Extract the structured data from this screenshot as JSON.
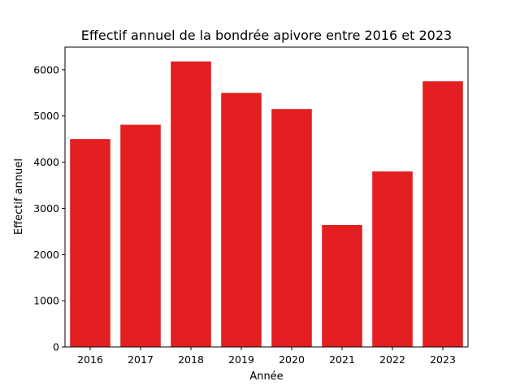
{
  "chart_data": {
    "type": "bar",
    "title": "Effectif annuel de la bondrée apivore entre 2016 et 2023",
    "xlabel": "Année",
    "ylabel": "Effectif annuel",
    "categories": [
      "2016",
      "2017",
      "2018",
      "2019",
      "2020",
      "2021",
      "2022",
      "2023"
    ],
    "values": [
      4500,
      4810,
      6180,
      5500,
      5150,
      2640,
      3800,
      5750
    ],
    "ylim": [
      0,
      6490
    ],
    "yticks": [
      0,
      1000,
      2000,
      3000,
      4000,
      5000,
      6000
    ],
    "bar_color": "#e31f22",
    "grid": false,
    "legend": "none"
  }
}
